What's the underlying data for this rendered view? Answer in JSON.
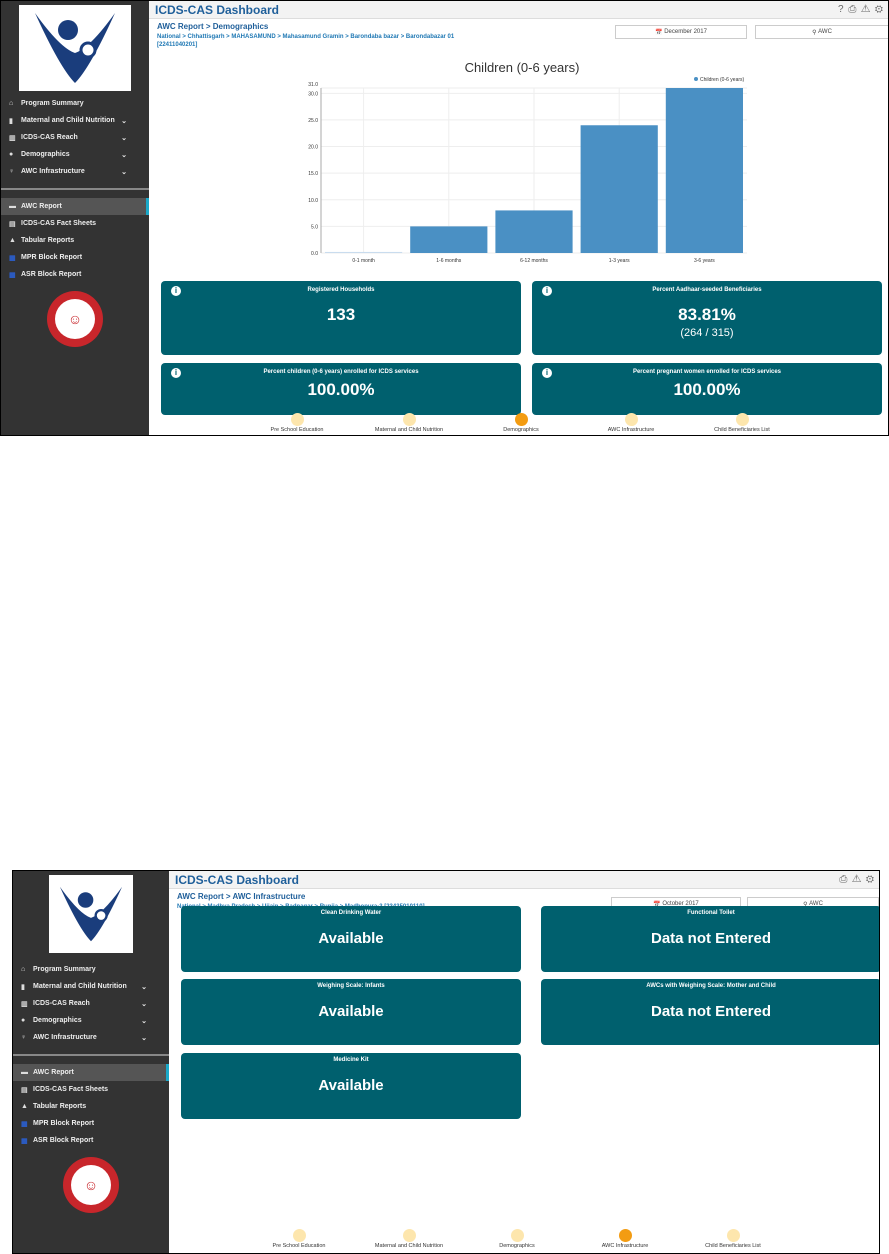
{
  "app_title": "ICDS-CAS Dashboard",
  "sidebar": {
    "items": [
      {
        "label": "Program Summary",
        "icon": "home-icon"
      },
      {
        "label": "Maternal and Child Nutrition",
        "icon": "child-icon"
      },
      {
        "label": "ICDS-CAS Reach",
        "icon": "bar-chart-icon"
      },
      {
        "label": "Demographics",
        "icon": "users-icon"
      },
      {
        "label": "AWC Infrastructure",
        "icon": "bulb-icon"
      }
    ],
    "reports": [
      {
        "label": "AWC Report",
        "icon": "report-icon"
      },
      {
        "label": "ICDS-CAS Fact Sheets",
        "icon": "file-icon"
      },
      {
        "label": "Tabular Reports",
        "icon": "user-icon"
      },
      {
        "label": "MPR Block Report",
        "icon": "grid-icon"
      },
      {
        "label": "ASR Block Report",
        "icon": "grid-icon"
      }
    ]
  },
  "bottom_nav": [
    "Pre School Education",
    "Maternal and Child Nutrition",
    "Demographics",
    "AWC Infrastructure",
    "Child Beneficiaries List"
  ],
  "screen1": {
    "heading": "AWC Report > Demographics",
    "path": "National > Chhattisgarh > MAHASAMUND > Mahasamund Gramin > Barondaba bazar > Barondabazar 01 [22411040201]",
    "month": "December 2017",
    "location": "AWC",
    "cards": [
      {
        "title": "Registered Households",
        "value": "133"
      },
      {
        "title": "Percent Aadhaar-seeded Beneficiaries",
        "value": "83.81%",
        "sub": "(264 / 315)"
      },
      {
        "title": "Percent children (0-6 years) enrolled for ICDS services",
        "value": "100.00%"
      },
      {
        "title": "Percent pregnant women enrolled for ICDS services",
        "value": "100.00%"
      }
    ],
    "active_nav": 2
  },
  "chart_data": {
    "type": "bar",
    "title": "Children (0-6 years)",
    "categories": [
      "0-1 month",
      "1-6 months",
      "6-12 months",
      "1-3 years",
      "3-6 years"
    ],
    "series": [
      {
        "name": "Children (0-6 years)",
        "values": [
          0.2,
          5,
          8,
          24,
          31
        ]
      }
    ],
    "yticks": [
      "0.0",
      "5.0",
      "10.0",
      "15.0",
      "20.0",
      "25.0",
      "30.0",
      "31.0"
    ],
    "ylim": [
      0,
      31
    ],
    "color": "#4a90c4"
  },
  "screen2": {
    "heading": "AWC Report > AWC Infrastructure",
    "path": "National > Madhya Pradesh > Ujjain > Badnagar > Runija > Madhopura-3 [23435010110]",
    "month": "October 2017",
    "location": "AWC",
    "cards": [
      {
        "title": "Clean Drinking Water",
        "value": "Available"
      },
      {
        "title": "Functional Toilet",
        "value": "Data not Entered"
      },
      {
        "title": "Weighing Scale: Infants",
        "value": "Available"
      },
      {
        "title": "AWCs with Weighing Scale: Mother and Child",
        "value": "Data not Entered"
      },
      {
        "title": "Medicine Kit",
        "value": "Available"
      }
    ],
    "active_nav": 3
  }
}
